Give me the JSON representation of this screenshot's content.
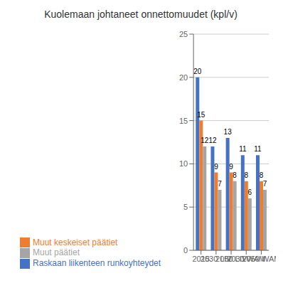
{
  "chart_data": {
    "type": "bar",
    "title": "Kuolemaan johtaneet onnettomuudet (kpl/v)",
    "categories": [
      "2015",
      "2030 LIV",
      "2050 LIV",
      "2030 WAM",
      "2050 WAM"
    ],
    "series": [
      {
        "name": "Raskaan liikenteen runkoyhteydet",
        "values": [
          20,
          12,
          13,
          11,
          11
        ],
        "color": "#4472C4"
      },
      {
        "name": "Muut keskeiset päätiet",
        "values": [
          15,
          9,
          9,
          8,
          8
        ],
        "color": "#ED7D31"
      },
      {
        "name": "Muut päätiet",
        "values": [
          12,
          7,
          8,
          6,
          7
        ],
        "color": "#A5A5A5"
      }
    ],
    "ylim": [
      0,
      25
    ],
    "yticks": [
      0,
      5,
      10,
      15,
      20,
      25
    ],
    "grid": true,
    "legend": "bottom",
    "data_labels": true
  }
}
